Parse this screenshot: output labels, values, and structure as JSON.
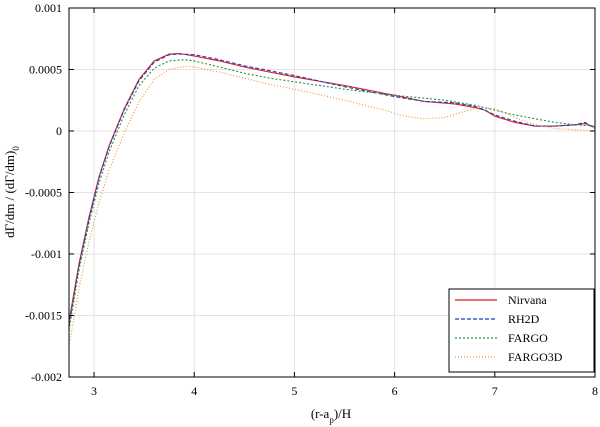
{
  "chart_data": {
    "type": "line",
    "xlabel_main": "(r-a",
    "xlabel_sub": "p",
    "xlabel_tail": ")/H",
    "ylabel_main": "dΓ/dm / (dΓ/dm)",
    "ylabel_sub": "0",
    "xlim": [
      2.75,
      8.0
    ],
    "ylim": [
      -0.002,
      0.001
    ],
    "xticks": [
      3,
      4,
      5,
      6,
      7,
      8
    ],
    "xtick_labels": [
      "3",
      "4",
      "5",
      "6",
      "7",
      "8"
    ],
    "yticks": [
      -0.002,
      -0.0015,
      -0.001,
      -0.0005,
      0,
      0.0005,
      0.001
    ],
    "ytick_labels": [
      "-0.002",
      "-0.0015",
      "-0.001",
      "-0.0005",
      "0",
      "0.0005",
      "0.001"
    ],
    "grid": true,
    "legend_position": "bottom-right",
    "series": [
      {
        "name": "Nirvana",
        "color": "#e41a1c",
        "dash": "solid",
        "x": [
          2.75,
          2.85,
          2.95,
          3.05,
          3.15,
          3.3,
          3.45,
          3.6,
          3.75,
          3.85,
          4.0,
          4.25,
          4.5,
          4.75,
          5.0,
          5.5,
          6.0,
          6.3,
          6.6,
          6.8,
          6.9,
          7.0,
          7.2,
          7.4,
          7.6,
          7.8,
          7.9,
          8.0
        ],
        "y": [
          -0.00155,
          -0.00108,
          -0.0007,
          -0.00037,
          -0.00012,
          0.00018,
          0.00042,
          0.00057,
          0.000625,
          0.00063,
          0.00061,
          0.00057,
          0.00052,
          0.00048,
          0.00044,
          0.00037,
          0.00029,
          0.00024,
          0.00022,
          0.00019,
          0.00017,
          0.00012,
          7e-05,
          4e-05,
          4e-05,
          5e-05,
          6e-05,
          3e-05
        ]
      },
      {
        "name": "RH2D",
        "color": "#1f3fbf",
        "dash": "4,2",
        "x": [
          2.75,
          2.85,
          2.95,
          3.05,
          3.15,
          3.3,
          3.45,
          3.6,
          3.75,
          3.85,
          4.0,
          4.25,
          4.5,
          4.75,
          5.0,
          5.5,
          6.0,
          6.3,
          6.6,
          6.8,
          6.9,
          7.0,
          7.2,
          7.4,
          7.6,
          7.8,
          7.9,
          8.0
        ],
        "y": [
          -0.00158,
          -0.0011,
          -0.00072,
          -0.00038,
          -0.00013,
          0.00017,
          0.00041,
          0.00056,
          0.00062,
          0.000625,
          0.00062,
          0.00058,
          0.00053,
          0.00049,
          0.00045,
          0.00036,
          0.00028,
          0.00024,
          0.00023,
          0.0002,
          0.00017,
          0.00013,
          8e-05,
          4e-05,
          4e-05,
          5e-05,
          7e-05,
          2e-05
        ]
      },
      {
        "name": "FARGO",
        "color": "#1a9641",
        "dash": "2,2",
        "x": [
          2.75,
          2.85,
          2.95,
          3.05,
          3.15,
          3.3,
          3.45,
          3.6,
          3.75,
          3.9,
          4.0,
          4.25,
          4.5,
          4.75,
          5.0,
          5.5,
          6.0,
          6.5,
          6.8,
          7.0,
          7.2,
          7.4,
          7.6,
          7.8,
          8.0
        ],
        "y": [
          -0.00162,
          -0.00113,
          -0.00075,
          -0.00042,
          -0.00017,
          0.00013,
          0.00037,
          0.00051,
          0.00057,
          0.00058,
          0.00057,
          0.00052,
          0.00047,
          0.00043,
          0.0004,
          0.00034,
          0.00029,
          0.00025,
          0.00021,
          0.00017,
          0.00013,
          0.0001,
          7e-05,
          5e-05,
          4e-05
        ]
      },
      {
        "name": "FARGO3D",
        "color": "#f28e2b",
        "dash": "1,2",
        "x": [
          2.75,
          2.85,
          2.95,
          3.05,
          3.15,
          3.3,
          3.45,
          3.6,
          3.75,
          3.9,
          4.0,
          4.25,
          4.5,
          4.75,
          5.0,
          5.5,
          5.9,
          6.1,
          6.3,
          6.5,
          6.7,
          6.85,
          7.0,
          7.2,
          7.4,
          7.6,
          7.8,
          8.0
        ],
        "y": [
          -0.00175,
          -0.00128,
          -0.0009,
          -0.00058,
          -0.00032,
          -2e-05,
          0.00024,
          0.00042,
          0.0005,
          0.000525,
          0.00052,
          0.00048,
          0.00043,
          0.00038,
          0.00034,
          0.00025,
          0.00017,
          0.00012,
          0.0001,
          0.00011,
          0.00016,
          0.00019,
          0.00018,
          0.00011,
          5e-05,
          2e-05,
          1e-05,
          0.0
        ]
      }
    ]
  }
}
